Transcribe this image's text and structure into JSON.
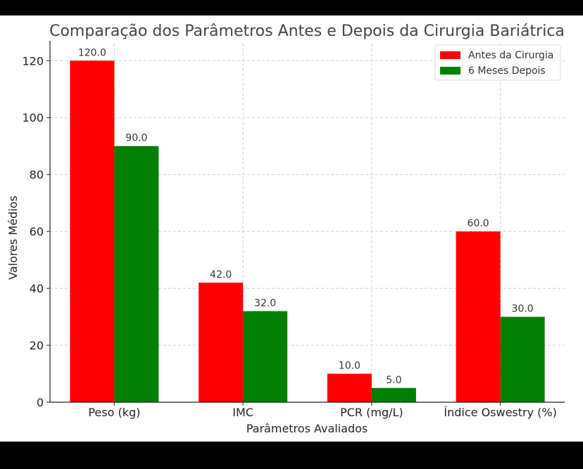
{
  "chart_data": {
    "type": "bar",
    "title": "Comparação dos Parâmetros Antes e Depois da Cirurgia Bariátrica",
    "xlabel": "Parâmetros Avaliados",
    "ylabel": "Valores Médios",
    "categories": [
      "Peso (kg)",
      "IMC",
      "PCR (mg/L)",
      "Índice Oswestry (%)"
    ],
    "series": [
      {
        "name": "Antes da Cirurgia",
        "color": "#ff0000",
        "values": [
          120.0,
          42.0,
          10.0,
          60.0
        ],
        "labels": [
          "120.0",
          "42.0",
          "10.0",
          "60.0"
        ]
      },
      {
        "name": "6 Meses Depois",
        "color": "#008000",
        "values": [
          90.0,
          32.0,
          5.0,
          30.0
        ],
        "labels": [
          "90.0",
          "32.0",
          "5.0",
          "30.0"
        ]
      }
    ],
    "ylim": [
      0,
      126
    ],
    "yticks": [
      0,
      20,
      40,
      60,
      80,
      100,
      120
    ],
    "grid": true,
    "legend": "top-right"
  }
}
